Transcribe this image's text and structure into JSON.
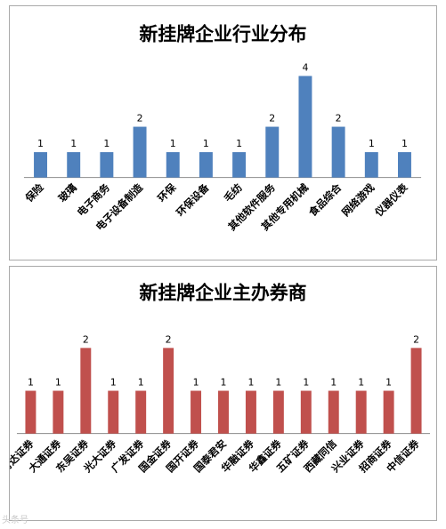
{
  "chart_data": [
    {
      "type": "bar",
      "title": "新挂牌企业行业分布",
      "categories": [
        "保险",
        "玻璃",
        "电子商务",
        "电子设备制造",
        "环保",
        "环保设备",
        "毛纺",
        "其他软件服务",
        "其他专用机械",
        "食品综合",
        "网络游戏",
        "仪器仪表"
      ],
      "values": [
        1,
        1,
        1,
        2,
        1,
        1,
        1,
        2,
        4,
        2,
        1,
        1
      ],
      "ylim": [
        0,
        4
      ],
      "grid": false,
      "data_labels": true,
      "color": "#4f81bd"
    },
    {
      "type": "bar",
      "title": "新挂牌企业主办券商",
      "categories": [
        "财达证券",
        "大通证券",
        "东吴证券",
        "光大证券",
        "广发证券",
        "国金证券",
        "国开证券",
        "国泰君安",
        "华融证券",
        "华鑫证券",
        "五矿证券",
        "西藏同信",
        "兴业证券",
        "招商证券",
        "中信证券"
      ],
      "values": [
        1,
        1,
        2,
        1,
        1,
        2,
        1,
        1,
        1,
        1,
        1,
        1,
        1,
        1,
        2
      ],
      "ylim": [
        0,
        2
      ],
      "grid": false,
      "data_labels": true,
      "color": "#c0504d"
    }
  ],
  "watermark": "头条号"
}
